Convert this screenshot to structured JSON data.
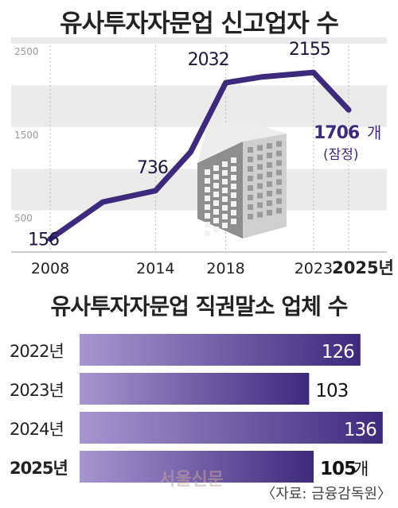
{
  "chart_data": [
    {
      "type": "line",
      "title": "유사투자자문업 신고업자 수",
      "x": [
        2008,
        2011,
        2014,
        2016,
        2018,
        2020,
        2023,
        2025
      ],
      "values": [
        156,
        600,
        736,
        1200,
        2032,
        2100,
        2155,
        1706
      ],
      "value_labels": [
        {
          "x": 2008,
          "text": "156"
        },
        {
          "x": 2014,
          "text": "736"
        },
        {
          "x": 2018,
          "text": "2032"
        },
        {
          "x": 2023,
          "text": "2155"
        },
        {
          "x": 2025,
          "text": "1706",
          "unit": "개",
          "note": "(잠정)"
        }
      ],
      "x_ticks": [
        "2008",
        "2014",
        "2018",
        "2023",
        "2025년"
      ],
      "y_ticks": [
        "500",
        "1500",
        "2500"
      ],
      "ylim": [
        0,
        2500
      ],
      "xlim": [
        2007,
        2026
      ],
      "line_color": "#3d2a7d"
    },
    {
      "type": "bar",
      "orientation": "horizontal",
      "title": "유사투자자문업 직권말소 업체 수",
      "categories": [
        "2022년",
        "2023년",
        "2024년",
        "2025년"
      ],
      "values": [
        126,
        103,
        136,
        105
      ],
      "value_labels": [
        "126",
        "103",
        "136",
        "105"
      ],
      "last_unit": "개",
      "xlim": [
        0,
        140
      ],
      "color_light": "#a796d0",
      "color_dark": "#3d2a7d"
    }
  ],
  "watermark": "서울신문",
  "source": "〈자료: 금융감독원〉"
}
